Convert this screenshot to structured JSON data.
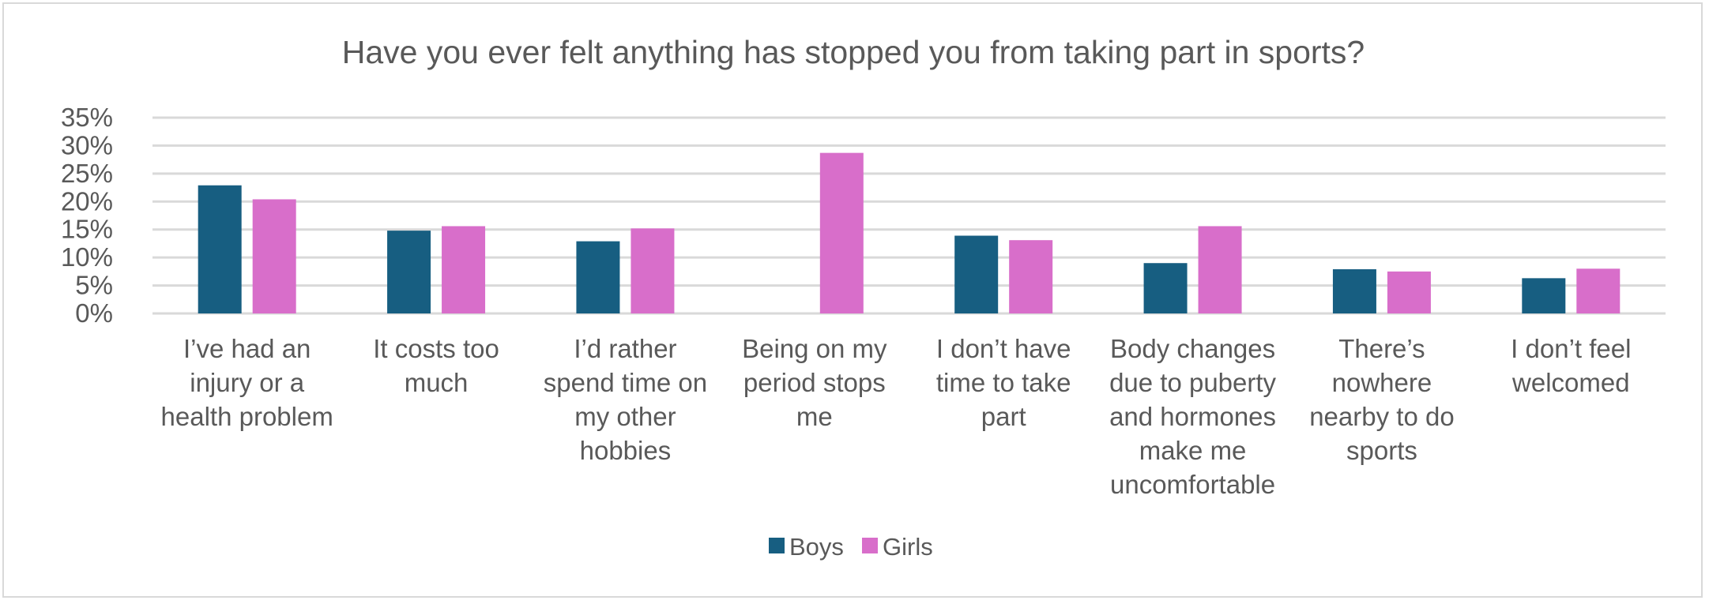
{
  "chart_data": {
    "type": "bar",
    "title": "Have you ever felt anything has stopped you from taking part in sports?",
    "xlabel": "",
    "ylabel": "",
    "ylim": [
      0,
      0.35
    ],
    "yticks": [
      "0%",
      "5%",
      "10%",
      "15%",
      "20%",
      "25%",
      "30%",
      "35%"
    ],
    "grid": true,
    "legend_position": "bottom",
    "categories": [
      [
        "I’ve had an",
        "injury or a",
        "health problem"
      ],
      [
        "It costs too",
        "much"
      ],
      [
        "I’d rather",
        "spend time on",
        "my other",
        "hobbies"
      ],
      [
        "Being on my",
        "period stops",
        "me"
      ],
      [
        "I don’t have",
        "time to take",
        "part"
      ],
      [
        "Body changes",
        "due to puberty",
        "and hormones",
        "make me",
        "uncomfortable"
      ],
      [
        "There’s",
        "nowhere",
        "nearby to do",
        "sports"
      ],
      [
        "I don’t feel",
        "welcomed"
      ]
    ],
    "series": [
      {
        "name": "Boys",
        "color": "#175E81",
        "values": [
          0.229,
          0.148,
          0.129,
          0.0,
          0.139,
          0.09,
          0.079,
          0.063
        ]
      },
      {
        "name": "Girls",
        "color": "#D86ECA",
        "values": [
          0.204,
          0.156,
          0.152,
          0.287,
          0.131,
          0.156,
          0.075,
          0.08
        ]
      }
    ]
  }
}
